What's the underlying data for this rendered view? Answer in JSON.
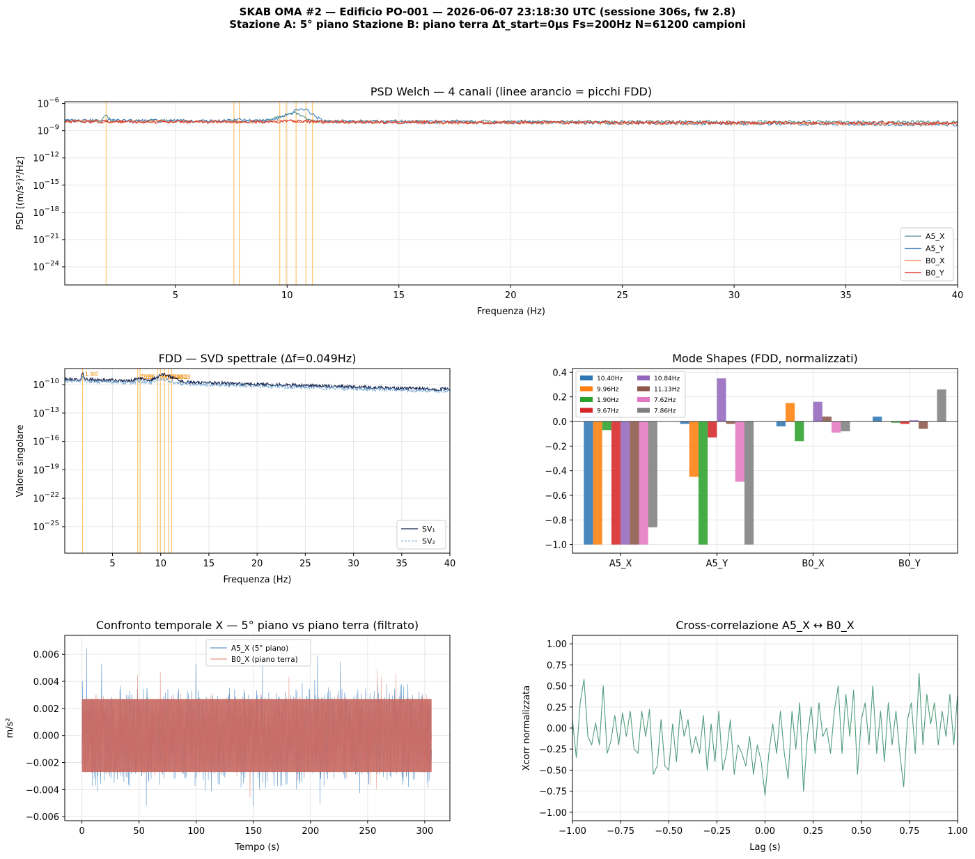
{
  "figure": {
    "title_line1": "SKAB OMA #2 — Edificio PO-001 — 2026-06-07 23:18:30 UTC (sessione 306s, fw 2.8)",
    "title_line2": "Stazione A: 5° piano   Stazione B: piano terra   Δt_start=0µs   Fs=200Hz   N=61200 campioni"
  },
  "colors": {
    "A5_X": "#4e8f8a",
    "A5_Y": "#3a7fbf",
    "B0_X": "#ef7f49",
    "B0_Y": "#d6332b",
    "fdd_lines": "#ffc56b",
    "sv1": "#14224e",
    "sv2": "#6fa5d3",
    "bars": [
      "#2f77b4",
      "#ff7f0e",
      "#2ca02c",
      "#d62728",
      "#9467bd",
      "#8c564b",
      "#e377c2",
      "#7f7f7f"
    ],
    "xcorr": "#4f9c7c"
  },
  "chart_data": [
    {
      "id": "psd",
      "type": "line",
      "title": "PSD Welch — 4 canali (linee arancio = picchi FDD)",
      "xlabel": "Frequenza (Hz)",
      "ylabel": "PSD [(m/s²)²/Hz]",
      "xlim": [
        0.05,
        40
      ],
      "ylog": true,
      "ylim_exp": [
        -26,
        -5.8
      ],
      "xticks": [
        5,
        10,
        15,
        20,
        25,
        30,
        35,
        40
      ],
      "yticks": [
        {
          "exp": -6,
          "label": "10",
          "sup": "−6"
        },
        {
          "exp": -9,
          "label": "10",
          "sup": "−9"
        },
        {
          "exp": -12,
          "label": "10",
          "sup": "−12"
        },
        {
          "exp": -15,
          "label": "10",
          "sup": "−15"
        },
        {
          "exp": -18,
          "label": "10",
          "sup": "−18"
        },
        {
          "exp": -21,
          "label": "10",
          "sup": "−21"
        },
        {
          "exp": -24,
          "label": "10",
          "sup": "−24"
        }
      ],
      "peak_lines_hz": [
        1.9,
        7.62,
        7.86,
        9.67,
        9.96,
        10.4,
        10.84,
        11.13
      ],
      "legend_position": "lower-right",
      "series": [
        {
          "name": "A5_X",
          "log10_base": -7.9,
          "peaks": [
            [
              1.9,
              0.6,
              0.15
            ],
            [
              9.96,
              0.55,
              0.7
            ],
            [
              10.4,
              0.5,
              0.4
            ]
          ],
          "slope": -0.004
        },
        {
          "name": "A5_Y",
          "log10_base": -7.85,
          "peaks": [
            [
              10.4,
              0.9,
              0.8
            ],
            [
              10.84,
              0.6,
              0.5
            ],
            [
              7.86,
              0.15,
              0.5
            ]
          ],
          "slope": -0.012
        },
        {
          "name": "B0_X",
          "log10_base": -7.95,
          "peaks": [
            [
              9.96,
              0.15,
              0.6
            ]
          ],
          "slope": -0.008
        },
        {
          "name": "B0_Y",
          "log10_base": -8.0,
          "peaks": [
            [
              10.4,
              0.15,
              0.8
            ]
          ],
          "slope": -0.004
        }
      ]
    },
    {
      "id": "fdd",
      "type": "line",
      "title": "FDD — SVD spettrale (Δf=0.049Hz)",
      "xlabel": "Frequenza (Hz)",
      "ylabel": "Valore singolare",
      "xlim": [
        0.05,
        40
      ],
      "ylog": true,
      "ylim_exp": [
        -27.8,
        -8.3
      ],
      "xticks": [
        5,
        10,
        15,
        20,
        25,
        30,
        35,
        40
      ],
      "yticks": [
        {
          "exp": -10,
          "label": "10",
          "sup": "−10"
        },
        {
          "exp": -13,
          "label": "10",
          "sup": "−13"
        },
        {
          "exp": -16,
          "label": "10",
          "sup": "−16"
        },
        {
          "exp": -19,
          "label": "10",
          "sup": "−19"
        },
        {
          "exp": -22,
          "label": "10",
          "sup": "−22"
        },
        {
          "exp": -25,
          "label": "10",
          "sup": "−25"
        }
      ],
      "peak_lines_hz": [
        1.9,
        7.62,
        7.86,
        9.67,
        9.96,
        10.4,
        10.84,
        11.13
      ],
      "peak_labels": [
        "1.90",
        "7.62",
        "7.86",
        "9.67",
        "9.96",
        "10.40",
        "10.84",
        "11.13"
      ],
      "legend_position": "lower-right",
      "series": [
        {
          "name": "SV₁",
          "log10_base": -9.4
        },
        {
          "name": "SV₂",
          "log10_base": -9.6
        }
      ]
    },
    {
      "id": "modes",
      "type": "bar",
      "title": "Mode Shapes (FDD, normalizzati)",
      "categories": [
        "A5_X",
        "A5_Y",
        "B0_X",
        "B0_Y"
      ],
      "ylim": [
        -1.07,
        0.43
      ],
      "yticks": [
        0.4,
        0.2,
        0.0,
        -0.2,
        -0.4,
        -0.6,
        -0.8,
        -1.0
      ],
      "ytick_labels": [
        "0.4",
        "0.2",
        "0.0",
        "−0.2",
        "−0.4",
        "−0.6",
        "−0.8",
        "−1.0"
      ],
      "legend_position": "upper-left",
      "series": [
        {
          "name": "10.40Hz",
          "values": [
            -1.0,
            -0.02,
            -0.04,
            0.04
          ]
        },
        {
          "name": "9.96Hz",
          "values": [
            -1.0,
            -0.45,
            0.15,
            0.0
          ]
        },
        {
          "name": "1.90Hz",
          "values": [
            -0.07,
            -1.0,
            -0.16,
            -0.01
          ]
        },
        {
          "name": "9.67Hz",
          "values": [
            -1.0,
            -0.13,
            0.0,
            -0.02
          ]
        },
        {
          "name": "10.84Hz",
          "values": [
            -1.0,
            0.35,
            0.16,
            0.01
          ]
        },
        {
          "name": "11.13Hz",
          "values": [
            -1.0,
            -0.02,
            0.04,
            -0.06
          ]
        },
        {
          "name": "7.62Hz",
          "values": [
            -1.0,
            -0.49,
            -0.09,
            0.0
          ]
        },
        {
          "name": "7.86Hz",
          "values": [
            -0.86,
            -1.0,
            -0.08,
            0.26
          ]
        }
      ]
    },
    {
      "id": "time",
      "type": "line",
      "title": "Confronto temporale X — 5° piano vs piano terra (filtrato)",
      "xlabel": "Tempo (s)",
      "ylabel": "m/s²",
      "xlim": [
        -15,
        322
      ],
      "ylim": [
        -0.0063,
        0.0074
      ],
      "xticks": [
        0,
        50,
        100,
        150,
        200,
        250,
        300
      ],
      "yticks": [
        0.006,
        0.004,
        0.002,
        0.0,
        -0.002,
        -0.004,
        -0.006
      ],
      "ytick_labels": [
        "0.006",
        "0.004",
        "0.002",
        "0.000",
        "−0.002",
        "−0.004",
        "−0.006"
      ],
      "duration_s": 306,
      "legend_position": "upper-center",
      "series": [
        {
          "name": "A5_X (5° piano)",
          "amplitude": 0.0042,
          "min": -0.0057,
          "max": 0.0069
        },
        {
          "name": "B0_X (piano terra)",
          "amplitude": 0.0032,
          "min": -0.0047,
          "max": 0.0052
        }
      ]
    },
    {
      "id": "xcorr",
      "type": "line",
      "title": "Cross-correlazione A5_X ↔ B0_X",
      "xlabel": "Lag (s)",
      "ylabel": "Xcorr normalizzata",
      "xlim": [
        -1.0,
        1.0
      ],
      "ylim": [
        -1.1,
        1.1
      ],
      "xticks": [
        -1.0,
        -0.75,
        -0.5,
        -0.25,
        0.0,
        0.25,
        0.5,
        0.75,
        1.0
      ],
      "xtick_labels": [
        "−1.00",
        "−0.75",
        "−0.50",
        "−0.25",
        "0.00",
        "0.25",
        "0.50",
        "0.75",
        "1.00"
      ],
      "yticks": [
        1.0,
        0.75,
        0.5,
        0.25,
        0.0,
        -0.25,
        -0.5,
        -0.75,
        -1.0
      ],
      "ytick_labels": [
        "1.00",
        "0.75",
        "0.50",
        "0.25",
        "0.00",
        "−0.25",
        "−0.50",
        "−0.75",
        "−1.00"
      ],
      "x": [
        -1.0,
        -0.98,
        -0.96,
        -0.94,
        -0.92,
        -0.9,
        -0.88,
        -0.86,
        -0.84,
        -0.82,
        -0.8,
        -0.78,
        -0.76,
        -0.74,
        -0.72,
        -0.7,
        -0.68,
        -0.66,
        -0.64,
        -0.62,
        -0.6,
        -0.58,
        -0.56,
        -0.54,
        -0.52,
        -0.5,
        -0.48,
        -0.46,
        -0.44,
        -0.42,
        -0.4,
        -0.38,
        -0.36,
        -0.34,
        -0.32,
        -0.3,
        -0.28,
        -0.26,
        -0.24,
        -0.22,
        -0.2,
        -0.18,
        -0.16,
        -0.14,
        -0.12,
        -0.1,
        -0.08,
        -0.06,
        -0.04,
        -0.02,
        0.0,
        0.02,
        0.04,
        0.06,
        0.08,
        0.1,
        0.12,
        0.14,
        0.16,
        0.18,
        0.2,
        0.22,
        0.24,
        0.26,
        0.28,
        0.3,
        0.32,
        0.34,
        0.36,
        0.38,
        0.4,
        0.42,
        0.44,
        0.46,
        0.48,
        0.5,
        0.52,
        0.54,
        0.56,
        0.58,
        0.6,
        0.62,
        0.64,
        0.66,
        0.68,
        0.7,
        0.72,
        0.74,
        0.76,
        0.78,
        0.8,
        0.82,
        0.84,
        0.86,
        0.88,
        0.9,
        0.92,
        0.94,
        0.96,
        0.98,
        1.0
      ],
      "y": [
        0.1,
        -0.35,
        0.3,
        0.58,
        -0.1,
        -0.2,
        0.06,
        -0.2,
        0.5,
        -0.3,
        -0.15,
        0.15,
        -0.2,
        0.18,
        -0.1,
        0.2,
        -0.25,
        -0.3,
        0.2,
        -0.1,
        0.22,
        -0.55,
        -0.45,
        0.1,
        -0.45,
        -0.5,
        0.05,
        -0.4,
        0.22,
        -0.1,
        0.1,
        -0.3,
        -0.1,
        -0.3,
        0.15,
        -0.5,
        0.05,
        -0.4,
        0.2,
        -0.5,
        -0.3,
        0.1,
        -0.55,
        -0.2,
        -0.3,
        -0.45,
        -0.1,
        -0.55,
        -0.2,
        -0.4,
        -0.8,
        -0.3,
        0.05,
        -0.3,
        0.2,
        -0.3,
        -0.6,
        0.2,
        -0.25,
        0.3,
        -0.75,
        -0.1,
        0.25,
        -0.3,
        0.3,
        -0.1,
        0.0,
        -0.3,
        0.2,
        0.5,
        -0.3,
        0.4,
        -0.1,
        0.45,
        -0.55,
        0.1,
        0.3,
        -0.2,
        0.5,
        -0.3,
        0.2,
        -0.4,
        0.3,
        -0.2,
        0.2,
        -0.3,
        -0.7,
        0.1,
        0.3,
        -0.3,
        0.65,
        -0.2,
        0.4,
        0.05,
        0.3,
        -0.2,
        0.2,
        -0.1,
        0.4,
        -0.2,
        0.4
      ],
      "color_key": "xcorr"
    }
  ]
}
